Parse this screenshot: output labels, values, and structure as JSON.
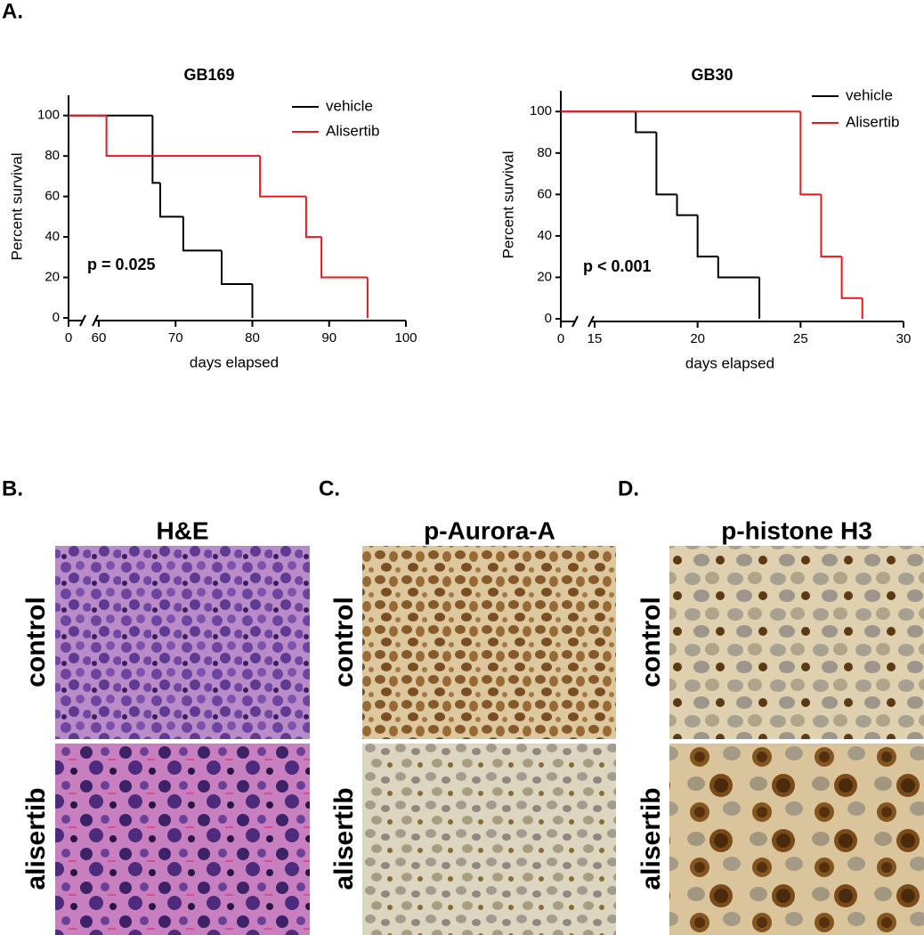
{
  "panel_labels": [
    "A.",
    "B.",
    "C.",
    "D."
  ],
  "chart_data": [
    {
      "type": "step",
      "title": "GB169",
      "xlabel": "days elapsed",
      "ylabel": "Percent survival",
      "annotation": "p = 0.025",
      "xlim": [
        0,
        100
      ],
      "xbreak": [
        0,
        60
      ],
      "xticks": [
        0,
        60,
        70,
        80,
        90,
        100
      ],
      "ylim": [
        0,
        110
      ],
      "yticks": [
        0,
        20,
        40,
        60,
        80,
        100
      ],
      "legend": "upper right",
      "series": [
        {
          "name": "vehicle",
          "color": "#000000",
          "x": [
            0,
            67,
            68,
            71,
            76,
            80
          ],
          "values": [
            100,
            66.7,
            50,
            33.3,
            16.7,
            0
          ]
        },
        {
          "name": "Alisertib",
          "color": "#e41a1c",
          "x": [
            0,
            61,
            81,
            87,
            89,
            95
          ],
          "values": [
            100,
            80,
            60,
            40,
            20,
            0
          ]
        }
      ]
    },
    {
      "type": "step",
      "title": "GB30",
      "xlabel": "days elapsed",
      "ylabel": "Percent survival",
      "annotation": "p < 0.001",
      "xlim": [
        0,
        30
      ],
      "xbreak": [
        0,
        15
      ],
      "xticks": [
        0,
        15,
        20,
        25,
        30
      ],
      "ylim": [
        0,
        110
      ],
      "yticks": [
        0,
        20,
        40,
        60,
        80,
        100
      ],
      "legend": "upper right",
      "series": [
        {
          "name": "vehicle",
          "color": "#000000",
          "x": [
            0,
            17,
            18,
            19,
            20,
            21,
            23
          ],
          "values": [
            100,
            90,
            60,
            50,
            30,
            20,
            0
          ]
        },
        {
          "name": "Alisertib",
          "color": "#e41a1c",
          "x": [
            0,
            25,
            26,
            27,
            28
          ],
          "values": [
            100,
            60,
            30,
            10,
            0
          ]
        }
      ]
    }
  ],
  "image_panels": [
    {
      "title": "H&E",
      "rows": [
        "control",
        "alisertib"
      ]
    },
    {
      "title": "p-Aurora-A",
      "rows": [
        "control",
        "alisertib"
      ]
    },
    {
      "title": "p-histone H3",
      "rows": [
        "control",
        "alisertib"
      ]
    }
  ]
}
